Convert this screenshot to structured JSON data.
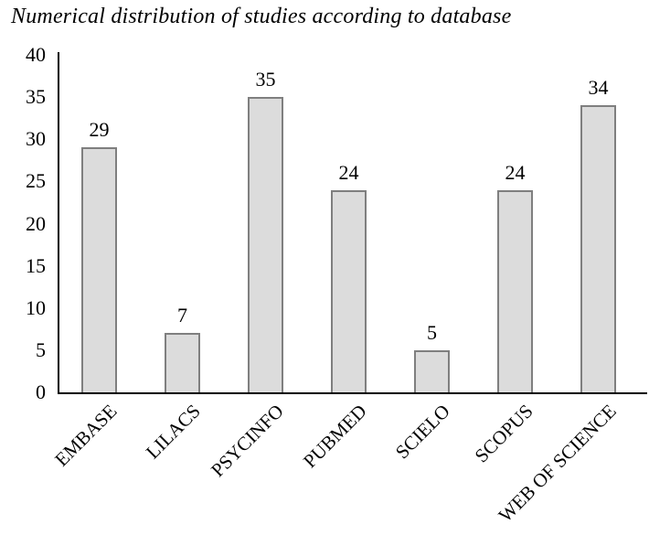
{
  "chart_data": {
    "type": "bar",
    "title": "Numerical distribution of studies according to database",
    "categories": [
      "EMBASE",
      "LILACS",
      "PSYCINFO",
      "PUBMED",
      "SCIELO",
      "SCOPUS",
      "WEB OF SCIENCE"
    ],
    "values": [
      29,
      7,
      35,
      24,
      5,
      24,
      34
    ],
    "xlabel": "",
    "ylabel": "",
    "ylim": [
      0,
      40
    ],
    "yticks": [
      0,
      5,
      10,
      15,
      20,
      25,
      30,
      35,
      40
    ],
    "grid": false,
    "legend_position": "none",
    "x_label_rotation_deg": 45,
    "colors": {
      "bar_fill": "#dcdcdc",
      "bar_border": "#7f7f7f",
      "axis": "#000000",
      "text": "#000000",
      "background": "#ffffff"
    }
  }
}
